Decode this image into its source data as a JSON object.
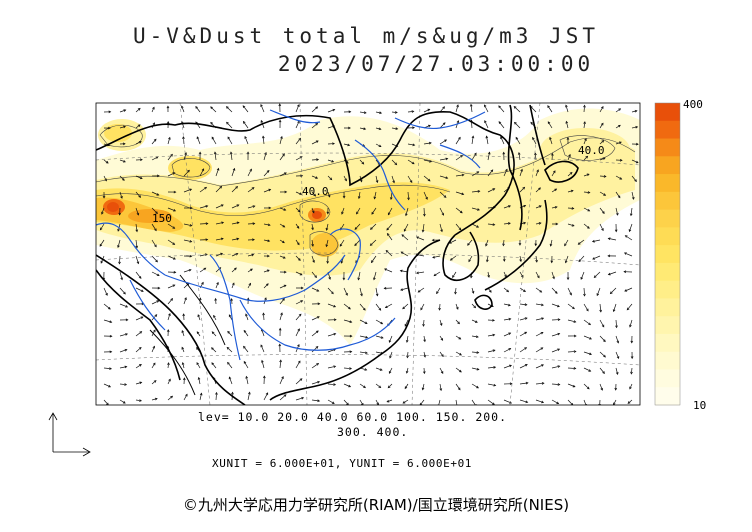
{
  "title": {
    "line1": "U-V&Dust total m/s&ug/m3 JST",
    "line2": "2023/07/27.03:00:00"
  },
  "map": {
    "contour_labels": [
      "40.0",
      "150",
      "40.0"
    ],
    "land_color": "#ffffff",
    "coast_color": "#000000",
    "river_color": "#1f5bd6"
  },
  "color_scale": {
    "max_label": "400",
    "min_label": "10",
    "colors": [
      "#e8500a",
      "#f06a10",
      "#f58a18",
      "#f8a520",
      "#fab82a",
      "#fcc63a",
      "#fdd24a",
      "#fedc55",
      "#ffe462",
      "#ffea74",
      "#ffee88",
      "#fff29c",
      "#fff5ae",
      "#fff8c0",
      "#fffad0",
      "#fffcdf",
      "#fffdeb"
    ]
  },
  "levels": {
    "line1": "lev= 10.0 20.0 40.0 60.0 100. 150. 200.",
    "line2": "300. 400."
  },
  "units": {
    "text": "XUNIT = 6.000E+01, YUNIT = 6.000E+01"
  },
  "copyright": "©九州大学応用力学研究所(RIAM)/国立環境研究所(NIES)"
}
